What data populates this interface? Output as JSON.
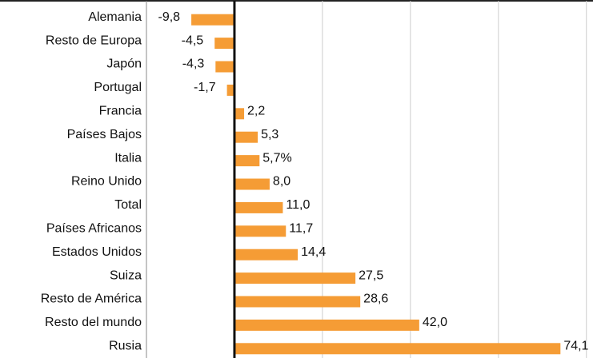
{
  "chart_data": {
    "type": "bar",
    "orientation": "horizontal",
    "categories": [
      "Alemania",
      "Resto de Europa",
      "Japón",
      "Portugal",
      "Francia",
      "Países Bajos",
      "Italia",
      "Reino Unido",
      "Total",
      "Países Africanos",
      "Estados Unidos",
      "Suiza",
      "Resto de América",
      "Resto del mundo",
      "Rusia"
    ],
    "values": [
      -9.8,
      -4.5,
      -4.3,
      -1.7,
      2.2,
      5.3,
      5.7,
      8.0,
      11.0,
      11.7,
      14.4,
      27.5,
      28.6,
      42.0,
      74.1
    ],
    "value_labels": [
      "-9,8",
      "-4,5",
      "-4,3",
      "-1,7",
      "2,2",
      "5,3",
      "5,7%",
      "8,0",
      "11,0",
      "11,7",
      "14,4",
      "27,5",
      "28,6",
      "42,0",
      "74,1"
    ],
    "color": "#f59c35",
    "xlim": [
      -20,
      81.5
    ],
    "xticks": [
      -20,
      0,
      20,
      40,
      60,
      80
    ],
    "grid": true,
    "tick_labels": false
  }
}
